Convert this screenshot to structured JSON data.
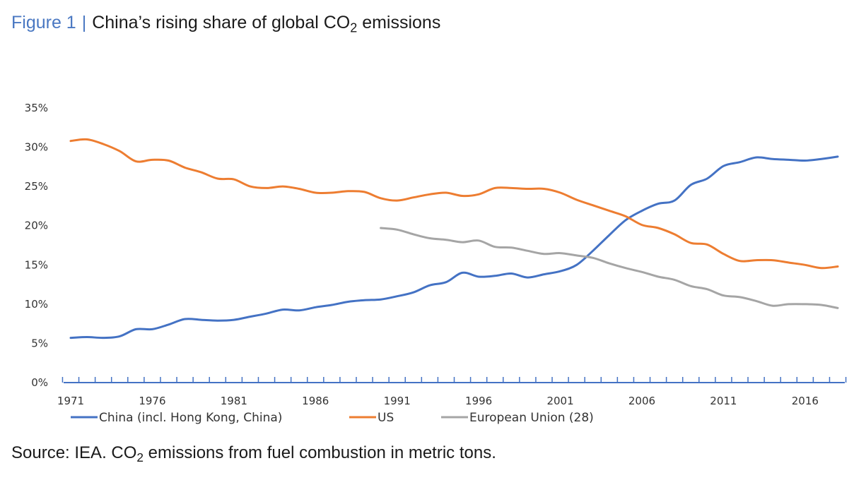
{
  "header": {
    "figure_label": "Figure 1",
    "separator": "|",
    "title_main": "China’s rising share of global CO",
    "title_sub": "2",
    "title_tail": " emissions"
  },
  "footer": {
    "source_main": "Source: IEA. CO",
    "source_sub": "2",
    "source_tail": " emissions from fuel combustion in metric tons."
  },
  "chart_data": {
    "type": "line",
    "xlim": [
      1971,
      2018
    ],
    "ylim": [
      0,
      35
    ],
    "y_ticks": [
      0,
      5,
      10,
      15,
      20,
      25,
      30,
      35
    ],
    "y_tick_labels": [
      "0%",
      "5%",
      "10%",
      "15%",
      "20%",
      "25%",
      "30%",
      "35%"
    ],
    "x_tick_labels": [
      "1971",
      "1976",
      "1981",
      "1986",
      "1991",
      "1996",
      "2001",
      "2006",
      "2011",
      "2016"
    ],
    "grid": false,
    "legend_position": "bottom",
    "series": [
      {
        "name": "China (incl. Hong Kong, China)",
        "color": "#4472c4",
        "x": [
          1971,
          1972,
          1973,
          1974,
          1975,
          1976,
          1977,
          1978,
          1979,
          1980,
          1981,
          1982,
          1983,
          1984,
          1985,
          1986,
          1987,
          1988,
          1989,
          1990,
          1991,
          1992,
          1993,
          1994,
          1995,
          1996,
          1997,
          1998,
          1999,
          2000,
          2001,
          2002,
          2003,
          2004,
          2005,
          2006,
          2007,
          2008,
          2009,
          2010,
          2011,
          2012,
          2013,
          2014,
          2015,
          2016,
          2017,
          2018
        ],
        "y": [
          5.7,
          5.8,
          5.7,
          5.9,
          6.8,
          6.8,
          7.4,
          8.1,
          8.0,
          7.9,
          8.0,
          8.4,
          8.8,
          9.3,
          9.2,
          9.6,
          9.9,
          10.3,
          10.5,
          10.6,
          11.0,
          11.5,
          12.4,
          12.8,
          14.0,
          13.5,
          13.6,
          13.9,
          13.4,
          13.8,
          14.2,
          15.0,
          16.8,
          18.8,
          20.7,
          21.9,
          22.8,
          23.2,
          25.2,
          26.0,
          27.6,
          28.1,
          28.7,
          28.5,
          28.4,
          28.3,
          28.5,
          28.8
        ]
      },
      {
        "name": "US",
        "color": "#ed7d31",
        "x": [
          1971,
          1972,
          1973,
          1974,
          1975,
          1976,
          1977,
          1978,
          1979,
          1980,
          1981,
          1982,
          1983,
          1984,
          1985,
          1986,
          1987,
          1988,
          1989,
          1990,
          1991,
          1992,
          1993,
          1994,
          1995,
          1996,
          1997,
          1998,
          1999,
          2000,
          2001,
          2002,
          2003,
          2004,
          2005,
          2006,
          2007,
          2008,
          2009,
          2010,
          2011,
          2012,
          2013,
          2014,
          2015,
          2016,
          2017,
          2018
        ],
        "y": [
          30.8,
          31.0,
          30.4,
          29.5,
          28.2,
          28.4,
          28.3,
          27.4,
          26.8,
          26.0,
          25.9,
          25.0,
          24.8,
          25.0,
          24.7,
          24.2,
          24.2,
          24.4,
          24.3,
          23.5,
          23.2,
          23.6,
          24.0,
          24.2,
          23.8,
          24.0,
          24.8,
          24.8,
          24.7,
          24.7,
          24.2,
          23.3,
          22.6,
          21.9,
          21.2,
          20.1,
          19.7,
          18.9,
          17.8,
          17.6,
          16.4,
          15.5,
          15.6,
          15.6,
          15.3,
          15.0,
          14.6,
          14.8
        ]
      },
      {
        "name": "European Union (28)",
        "color": "#a5a5a5",
        "x": [
          1990,
          1991,
          1992,
          1993,
          1994,
          1995,
          1996,
          1997,
          1998,
          1999,
          2000,
          2001,
          2002,
          2003,
          2004,
          2005,
          2006,
          2007,
          2008,
          2009,
          2010,
          2011,
          2012,
          2013,
          2014,
          2015,
          2016,
          2017,
          2018
        ],
        "y": [
          19.7,
          19.5,
          18.9,
          18.4,
          18.2,
          17.9,
          18.1,
          17.3,
          17.2,
          16.8,
          16.4,
          16.5,
          16.2,
          15.9,
          15.2,
          14.6,
          14.1,
          13.5,
          13.1,
          12.3,
          11.9,
          11.1,
          10.9,
          10.4,
          9.8,
          10.0,
          10.0,
          9.9,
          9.5
        ]
      }
    ]
  }
}
